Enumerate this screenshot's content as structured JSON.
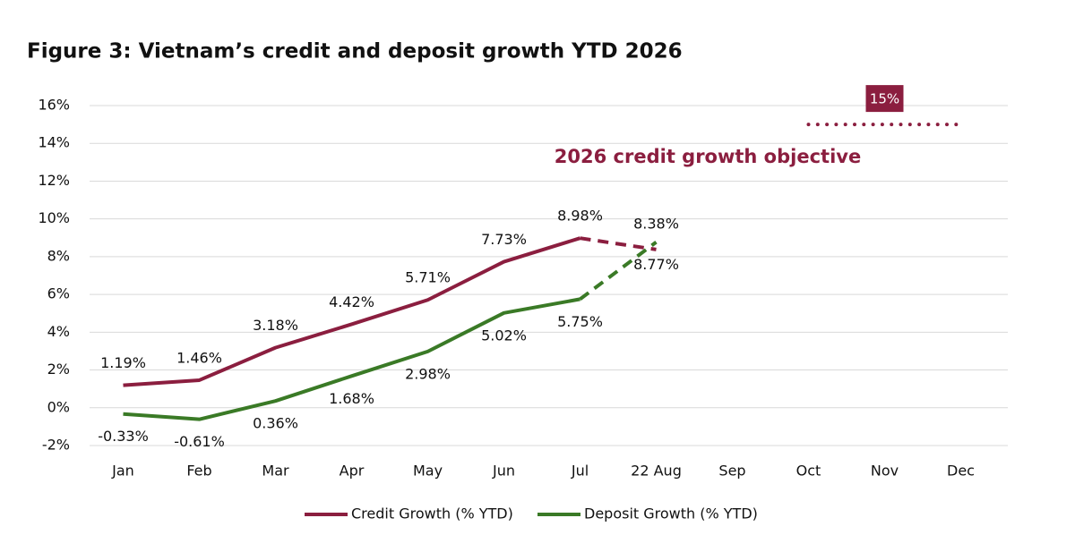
{
  "chart_data": {
    "type": "line",
    "title": "Figure 3: Vietnam’s credit and deposit growth YTD 2026",
    "categories": [
      "Jan",
      "Feb",
      "Mar",
      "Apr",
      "May",
      "Jun",
      "Jul",
      "22 Aug",
      "Sep",
      "Oct",
      "Nov",
      "Dec"
    ],
    "series": [
      {
        "name": "Credit Growth (% YTD)",
        "color": "#8b1e3f",
        "values": [
          1.19,
          1.46,
          3.18,
          4.42,
          5.71,
          7.73,
          8.98,
          8.38,
          null,
          null,
          null,
          null
        ],
        "value_labels": [
          "1.19%",
          "1.46%",
          "3.18%",
          "4.42%",
          "5.71%",
          "7.73%",
          "8.98%",
          "8.38%",
          null,
          null,
          null,
          null
        ],
        "dashed_from": "Jul"
      },
      {
        "name": "Deposit Growth (% YTD)",
        "color": "#3a7a26",
        "values": [
          -0.33,
          -0.61,
          0.36,
          1.68,
          2.98,
          5.02,
          5.75,
          8.77,
          null,
          null,
          null,
          null
        ],
        "value_labels": [
          "-0.33%",
          "-0.61%",
          "0.36%",
          "1.68%",
          "2.98%",
          "5.02%",
          "5.75%",
          "8.77%",
          null,
          null,
          null,
          null
        ],
        "dashed_from": "Jul"
      }
    ],
    "ylim": [
      -2,
      16
    ],
    "yticks": [
      {
        "value": -2,
        "label": "-2%"
      },
      {
        "value": 0,
        "label": "0%"
      },
      {
        "value": 2,
        "label": "2%"
      },
      {
        "value": 4,
        "label": "4%"
      },
      {
        "value": 6,
        "label": "6%"
      },
      {
        "value": 8,
        "label": "8%"
      },
      {
        "value": 10,
        "label": "10%"
      },
      {
        "value": 12,
        "label": "12%"
      },
      {
        "value": 14,
        "label": "14%"
      },
      {
        "value": 16,
        "label": "16%"
      }
    ],
    "grid": true,
    "legend": "bottom",
    "target": {
      "value": 15,
      "label": "15%",
      "start": "Oct",
      "end": "Dec",
      "text": "2026 credit growth objective",
      "color": "#8b1e3f"
    }
  }
}
